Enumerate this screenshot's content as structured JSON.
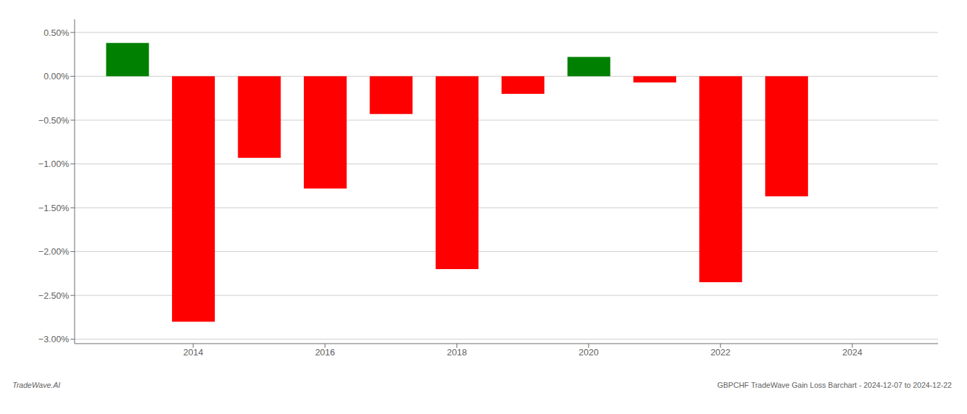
{
  "chart_data": {
    "type": "bar",
    "x": [
      2013,
      2014,
      2015,
      2016,
      2017,
      2018,
      2019,
      2020,
      2021,
      2022,
      2023
    ],
    "values": [
      0.38,
      -2.8,
      -0.93,
      -1.28,
      -0.43,
      -2.2,
      -0.2,
      0.22,
      -0.07,
      -2.35,
      -1.37
    ],
    "colors": [
      "#008000",
      "#ff0000",
      "#ff0000",
      "#ff0000",
      "#ff0000",
      "#ff0000",
      "#ff0000",
      "#008000",
      "#ff0000",
      "#ff0000",
      "#ff0000"
    ],
    "xlim": [
      2012.2,
      2025.3
    ],
    "xticks": [
      2014,
      2016,
      2018,
      2020,
      2022,
      2024
    ],
    "ylim": [
      -3.05,
      0.65
    ],
    "yticks": [
      {
        "value": 0.5,
        "label": "0.50%"
      },
      {
        "value": 0.0,
        "label": "0.00%"
      },
      {
        "value": -0.5,
        "label": "−0.50%"
      },
      {
        "value": -1.0,
        "label": "−1.00%"
      },
      {
        "value": -1.5,
        "label": "−1.50%"
      },
      {
        "value": -2.0,
        "label": "−2.00%"
      },
      {
        "value": -2.5,
        "label": "−2.50%"
      },
      {
        "value": -3.0,
        "label": "−3.00%"
      }
    ],
    "grid": true,
    "annotations": [
      "TradeWave.AI",
      "GBPCHF TradeWave Gain Loss Barchart - 2024-12-07 to 2024-12-22"
    ]
  }
}
